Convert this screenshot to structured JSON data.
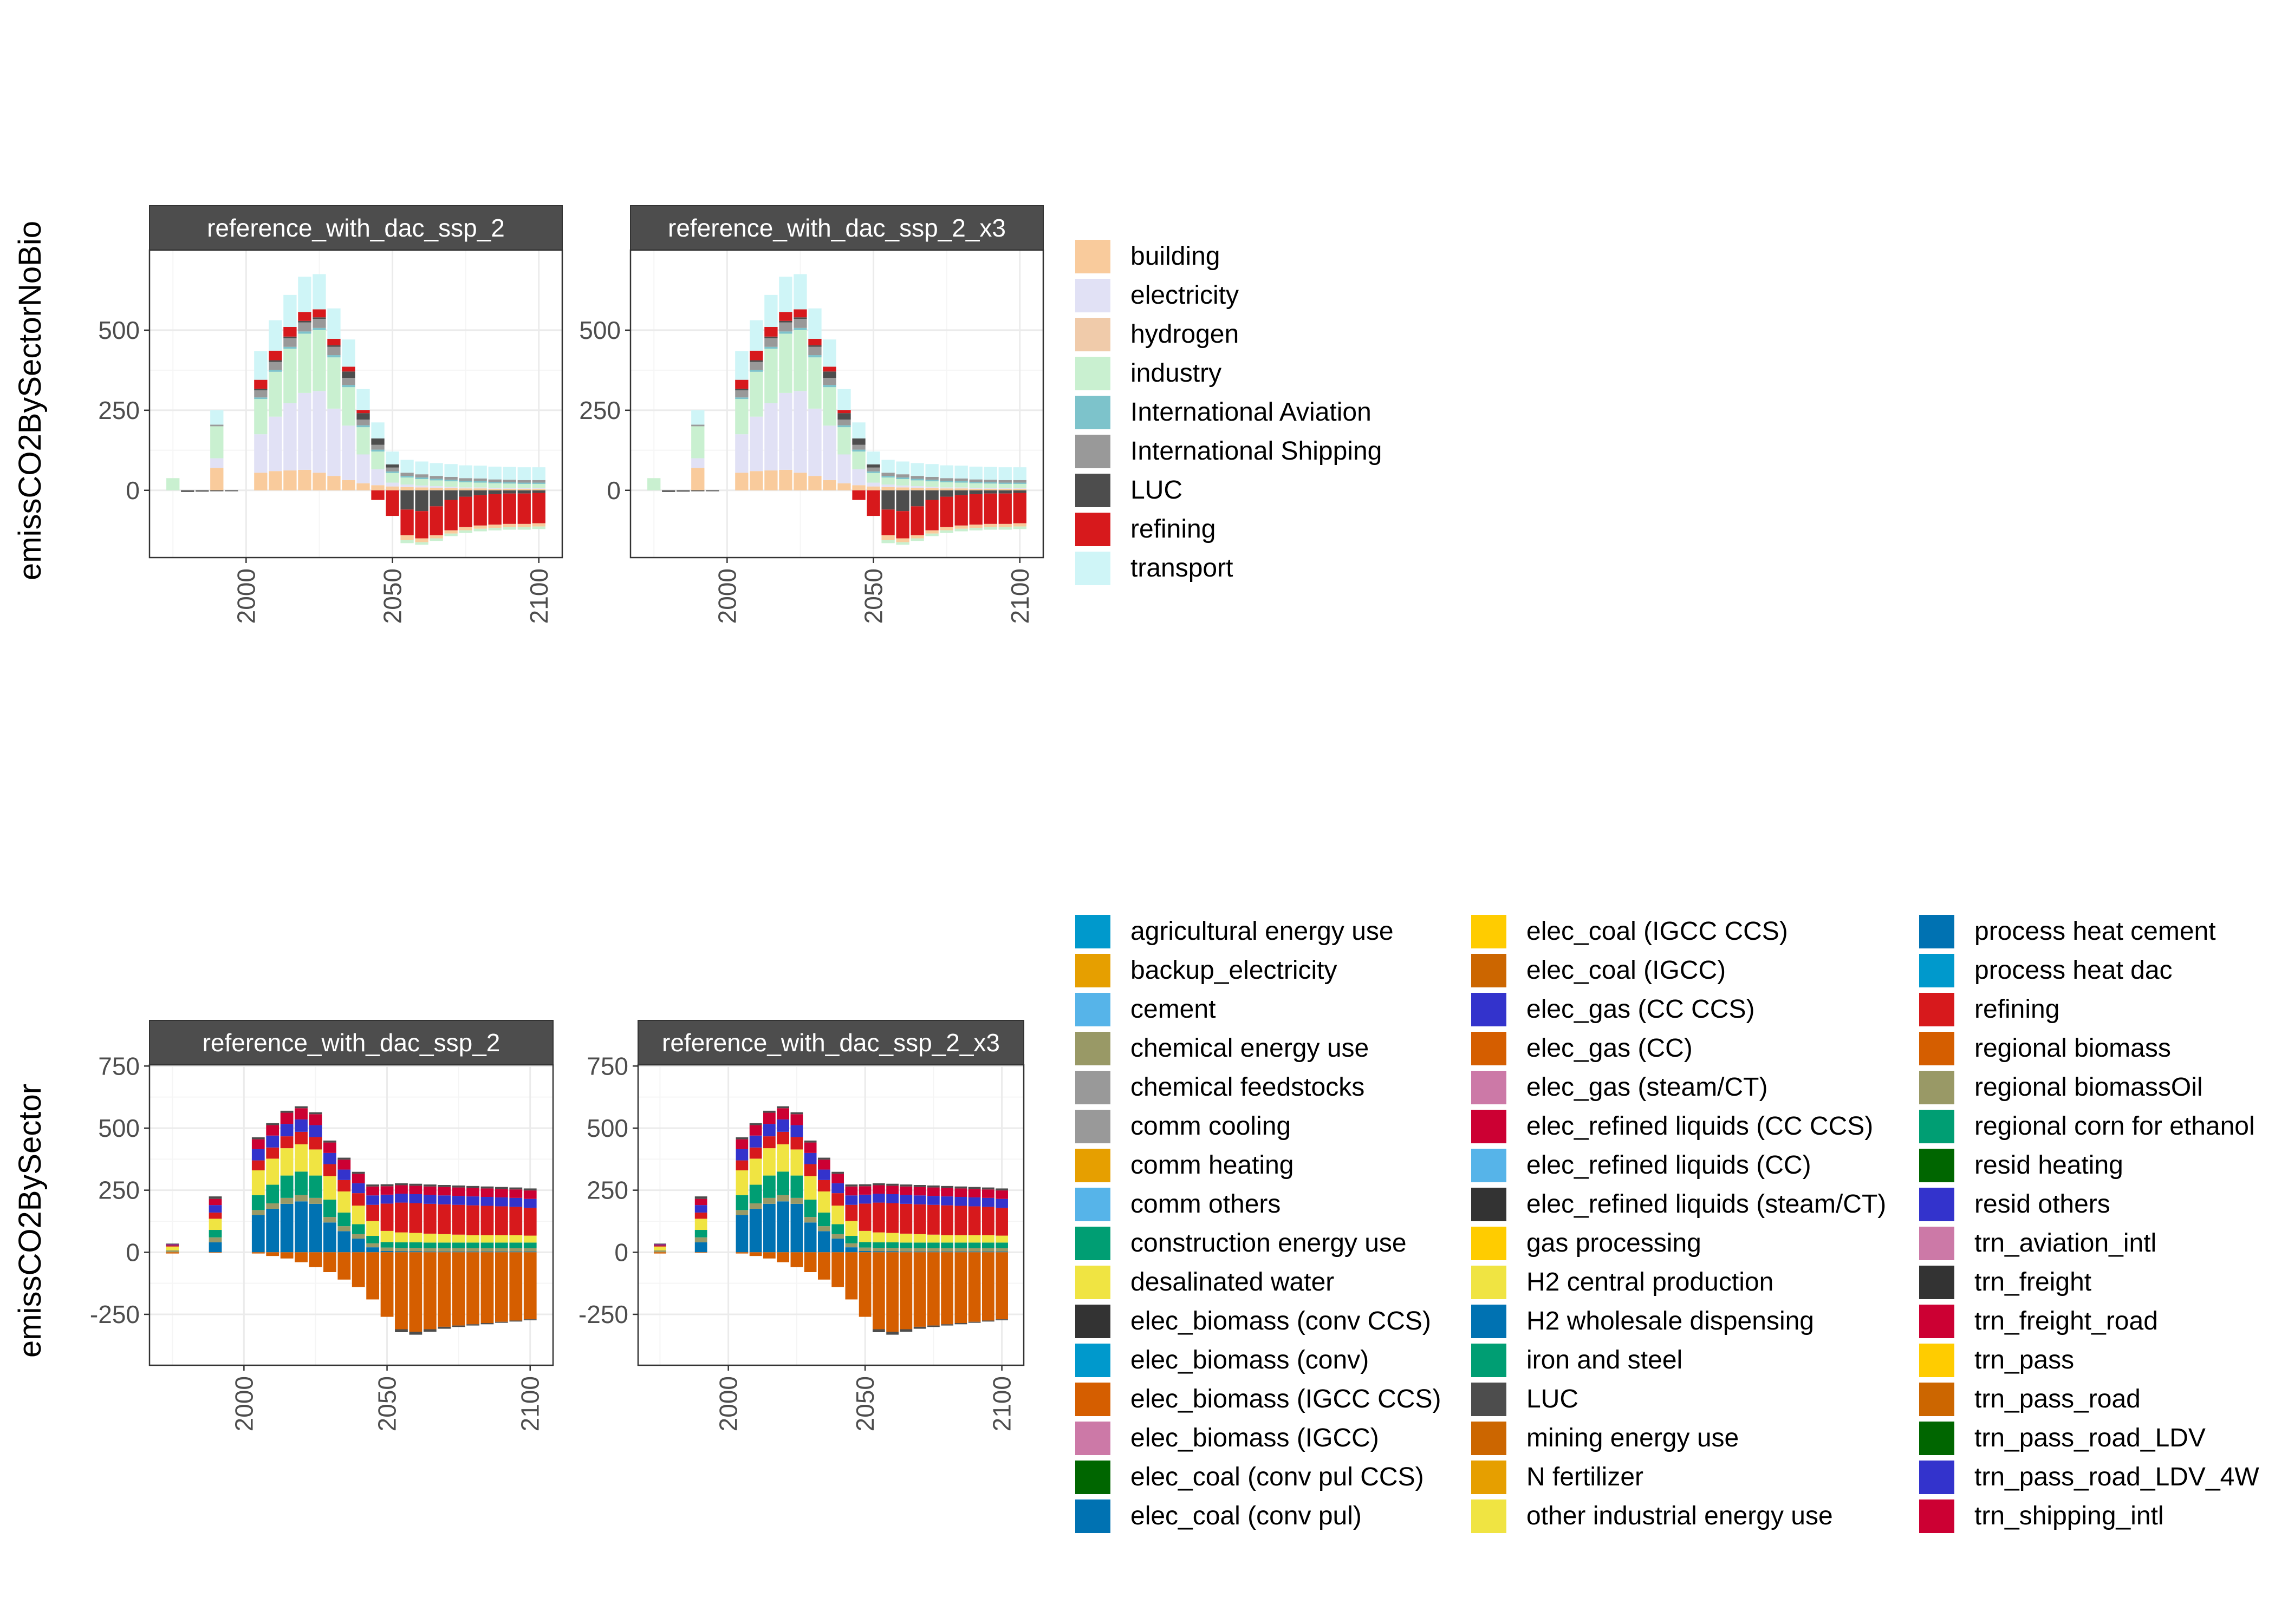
{
  "colors": {
    "strip_bg": "#4d4d4d",
    "strip_text": "#ffffff",
    "grid_major": "#ebebeb",
    "grid_minor": "#f5f5f5",
    "axis_text": "#4d4d4d",
    "panel_border": "#333333"
  },
  "chart_data": [
    {
      "type": "bar",
      "stacked": true,
      "row_label": "emissCO2BySectorNoBio",
      "facets": [
        "reference_with_dac_ssp_2",
        "reference_with_dac_ssp_2_x3"
      ],
      "x": [
        1975,
        1990,
        2005,
        2010,
        2015,
        2020,
        2025,
        2030,
        2035,
        2040,
        2045,
        2050,
        2055,
        2060,
        2065,
        2070,
        2075,
        2080,
        2085,
        2090,
        2095,
        2100
      ],
      "x_ticks": [
        2000,
        2050,
        2100
      ],
      "y_ticks": [
        0,
        250,
        500
      ],
      "ylim": [
        -210,
        750
      ],
      "xlim": [
        1967,
        2108
      ],
      "extra_bars": [
        {
          "x": 1975,
          "series": "industry",
          "value": 38
        },
        {
          "x": 1980,
          "series": "LUC",
          "value": -5
        },
        {
          "x": 1985,
          "series": "LUC",
          "value": -4
        },
        {
          "x": 1990,
          "series": "LUC",
          "value": -3
        },
        {
          "x": 1995,
          "series": "LUC",
          "value": -3
        }
      ],
      "series": [
        {
          "name": "building",
          "color": "#f9cb9c",
          "values": [
            0,
            70,
            55,
            60,
            62,
            64,
            55,
            45,
            32,
            22,
            16,
            12,
            10,
            9,
            8,
            7,
            6,
            6,
            5,
            5,
            5,
            5
          ]
        },
        {
          "name": "electricity",
          "color": "#e1e1f5",
          "values": [
            0,
            30,
            120,
            170,
            210,
            240,
            255,
            210,
            170,
            90,
            50,
            12,
            8,
            6,
            5,
            4,
            3,
            3,
            3,
            3,
            3,
            3
          ]
        },
        {
          "name": "hydrogen",
          "color": "#f0cbaa",
          "values": [
            0,
            0,
            0,
            0,
            0,
            0,
            0,
            0,
            0,
            0,
            0,
            0,
            0,
            0,
            0,
            0,
            0,
            0,
            0,
            0,
            0,
            0
          ]
        },
        {
          "name": "industry",
          "color": "#c9f0d0",
          "values": [
            0,
            100,
            110,
            140,
            170,
            185,
            190,
            160,
            120,
            85,
            55,
            30,
            22,
            20,
            18,
            17,
            16,
            15,
            14,
            13,
            12,
            12
          ]
        },
        {
          "name": "International Aviation",
          "color": "#7dc3cb",
          "values": [
            0,
            0,
            5,
            6,
            6,
            7,
            7,
            7,
            7,
            6,
            6,
            5,
            5,
            5,
            5,
            5,
            5,
            5,
            4,
            4,
            4,
            4
          ]
        },
        {
          "name": "International Shipping",
          "color": "#999999",
          "values": [
            0,
            5,
            22,
            25,
            27,
            28,
            28,
            26,
            22,
            18,
            15,
            12,
            10,
            10,
            9,
            9,
            8,
            8,
            8,
            8,
            8,
            8
          ]
        },
        {
          "name": "LUC",
          "color": "#4d4d4d",
          "values": [
            0,
            0,
            5,
            5,
            5,
            5,
            5,
            5,
            20,
            20,
            20,
            10,
            -60,
            -65,
            -50,
            -30,
            -20,
            -15,
            -12,
            -10,
            -10,
            -8
          ]
        },
        {
          "name": "refining",
          "color": "#d7191c",
          "values": [
            0,
            0,
            28,
            30,
            30,
            28,
            25,
            20,
            15,
            10,
            -30,
            -80,
            -80,
            -85,
            -90,
            -95,
            -95,
            -95,
            -95,
            -95,
            -95,
            -95
          ]
        },
        {
          "name": "transport",
          "color": "#cff5f7",
          "values": [
            0,
            45,
            90,
            95,
            100,
            110,
            110,
            95,
            85,
            65,
            50,
            40,
            40,
            40,
            40,
            40,
            40,
            40,
            40,
            40,
            40,
            40
          ]
        }
      ],
      "neg_extra": [
        {
          "series": "building",
          "values": [
            0,
            0,
            0,
            0,
            0,
            0,
            0,
            0,
            0,
            0,
            0,
            0,
            -15,
            -12,
            -10,
            -10,
            -10,
            -10,
            -10,
            -10,
            -10,
            -10
          ]
        },
        {
          "series": "industry",
          "values": [
            0,
            0,
            0,
            0,
            0,
            0,
            0,
            0,
            0,
            0,
            0,
            0,
            -10,
            -8,
            -8,
            -8,
            -8,
            -8,
            -8,
            -8,
            -8,
            -8
          ]
        }
      ],
      "legend": [
        "building",
        "electricity",
        "hydrogen",
        "industry",
        "International Aviation",
        "International Shipping",
        "LUC",
        "refining",
        "transport"
      ]
    },
    {
      "type": "bar",
      "stacked": true,
      "row_label": "emissCO2BySector",
      "facets": [
        "reference_with_dac_ssp_2",
        "reference_with_dac_ssp_2_x3"
      ],
      "x": [
        1975,
        1990,
        2005,
        2010,
        2015,
        2020,
        2025,
        2030,
        2035,
        2040,
        2045,
        2050,
        2055,
        2060,
        2065,
        2070,
        2075,
        2080,
        2085,
        2090,
        2095,
        2100
      ],
      "x_ticks": [
        2000,
        2050,
        2100
      ],
      "y_ticks": [
        -250,
        0,
        250,
        500,
        750
      ],
      "ylim": [
        -455,
        755
      ],
      "xlim": [
        1967,
        2108
      ],
      "positive_layers": [
        {
          "name": "elec_coal (conv pul)",
          "color": "#0072b2",
          "values": [
            0,
            40,
            150,
            175,
            195,
            205,
            195,
            120,
            85,
            55,
            20,
            5,
            4,
            4,
            3,
            3,
            3,
            3,
            3,
            3,
            3,
            3
          ]
        },
        {
          "name": "chemical energy use",
          "color": "#999966",
          "values": [
            8,
            20,
            20,
            22,
            24,
            25,
            24,
            22,
            20,
            18,
            16,
            14,
            14,
            14,
            14,
            14,
            14,
            14,
            14,
            14,
            14,
            14
          ]
        },
        {
          "name": "iron and steel",
          "color": "#009e73",
          "values": [
            0,
            30,
            60,
            75,
            90,
            95,
            90,
            70,
            55,
            40,
            30,
            22,
            22,
            22,
            22,
            22,
            22,
            22,
            22,
            22,
            22,
            22
          ]
        },
        {
          "name": "desalinated water",
          "color": "#f0e442",
          "values": [
            15,
            45,
            100,
            105,
            110,
            110,
            105,
            95,
            85,
            75,
            60,
            45,
            40,
            38,
            36,
            34,
            32,
            30,
            30,
            30,
            30,
            28
          ]
        },
        {
          "name": "refining",
          "color": "#d7191c",
          "values": [
            5,
            25,
            40,
            45,
            48,
            50,
            50,
            48,
            46,
            50,
            65,
            110,
            120,
            120,
            120,
            120,
            120,
            120,
            118,
            116,
            114,
            112
          ]
        },
        {
          "name": "trn_pass_road_LDV_4W",
          "color": "#3333cc",
          "values": [
            3,
            30,
            45,
            48,
            50,
            50,
            48,
            45,
            42,
            40,
            38,
            36,
            36,
            36,
            36,
            36,
            36,
            36,
            36,
            36,
            36,
            36
          ]
        },
        {
          "name": "trn_freight_road",
          "color": "#cc0033",
          "values": [
            2,
            25,
            40,
            42,
            45,
            45,
            44,
            42,
            40,
            38,
            36,
            34,
            34,
            34,
            34,
            34,
            34,
            34,
            34,
            34,
            34,
            34
          ]
        },
        {
          "name": "LUC",
          "color": "#4d4d4d",
          "values": [
            2,
            10,
            8,
            8,
            8,
            8,
            8,
            8,
            8,
            8,
            8,
            8,
            8,
            8,
            8,
            8,
            8,
            8,
            8,
            8,
            8,
            8
          ]
        }
      ],
      "negative_layers": [
        {
          "name": "regional biomass",
          "color": "#d55e00",
          "values": [
            -5,
            -2,
            -5,
            -15,
            -25,
            -40,
            -60,
            -80,
            -110,
            -140,
            -190,
            -260,
            -310,
            -320,
            -310,
            -300,
            -295,
            -290,
            -285,
            -280,
            -275,
            -270
          ]
        },
        {
          "name": "LUC",
          "color": "#4d4d4d",
          "values": [
            0,
            0,
            0,
            0,
            0,
            0,
            0,
            0,
            0,
            0,
            0,
            0,
            -12,
            -12,
            -10,
            -8,
            -6,
            -5,
            -5,
            -4,
            -4,
            -4
          ]
        }
      ],
      "legend": [
        {
          "name": "agricultural energy use",
          "color": "#0099cc"
        },
        {
          "name": "backup_electricity",
          "color": "#e69f00"
        },
        {
          "name": "cement",
          "color": "#56b4e9"
        },
        {
          "name": "chemical energy use",
          "color": "#999966"
        },
        {
          "name": "chemical feedstocks",
          "color": "#999999"
        },
        {
          "name": "comm cooling",
          "color": "#999999"
        },
        {
          "name": "comm heating",
          "color": "#e69f00"
        },
        {
          "name": "comm others",
          "color": "#56b4e9"
        },
        {
          "name": "construction energy use",
          "color": "#009e73"
        },
        {
          "name": "desalinated water",
          "color": "#f0e442"
        },
        {
          "name": "elec_biomass (conv CCS)",
          "color": "#333333"
        },
        {
          "name": "elec_biomass (conv)",
          "color": "#0099cc"
        },
        {
          "name": "elec_biomass (IGCC CCS)",
          "color": "#d55e00"
        },
        {
          "name": "elec_biomass (IGCC)",
          "color": "#cc79a7"
        },
        {
          "name": "elec_coal (conv pul CCS)",
          "color": "#006600"
        },
        {
          "name": "elec_coal (conv pul)",
          "color": "#0072b2"
        },
        {
          "name": "elec_coal (IGCC CCS)",
          "color": "#ffcc00"
        },
        {
          "name": "elec_coal (IGCC)",
          "color": "#cc6600"
        },
        {
          "name": "elec_gas (CC CCS)",
          "color": "#3333cc"
        },
        {
          "name": "elec_gas (CC)",
          "color": "#d55e00"
        },
        {
          "name": "elec_gas (steam/CT)",
          "color": "#cc79a7"
        },
        {
          "name": "elec_refined liquids (CC CCS)",
          "color": "#cc0033"
        },
        {
          "name": "elec_refined liquids (CC)",
          "color": "#56b4e9"
        },
        {
          "name": "elec_refined liquids (steam/CT)",
          "color": "#333333"
        },
        {
          "name": "gas processing",
          "color": "#ffcc00"
        },
        {
          "name": "H2 central production",
          "color": "#f0e442"
        },
        {
          "name": "H2 wholesale dispensing",
          "color": "#0072b2"
        },
        {
          "name": "iron and steel",
          "color": "#009e73"
        },
        {
          "name": "LUC",
          "color": "#4d4d4d"
        },
        {
          "name": "mining energy use",
          "color": "#cc6600"
        },
        {
          "name": "N fertilizer",
          "color": "#e69f00"
        },
        {
          "name": "other industrial energy use",
          "color": "#f0e442"
        },
        {
          "name": "process heat cement",
          "color": "#0072b2"
        },
        {
          "name": "process heat dac",
          "color": "#0099cc"
        },
        {
          "name": "refining",
          "color": "#d7191c"
        },
        {
          "name": "regional biomass",
          "color": "#d55e00"
        },
        {
          "name": "regional biomassOil",
          "color": "#999966"
        },
        {
          "name": "regional corn for ethanol",
          "color": "#009e73"
        },
        {
          "name": "resid heating",
          "color": "#006600"
        },
        {
          "name": "resid others",
          "color": "#3333cc"
        },
        {
          "name": "trn_aviation_intl",
          "color": "#cc79a7"
        },
        {
          "name": "trn_freight",
          "color": "#333333"
        },
        {
          "name": "trn_freight_road",
          "color": "#cc0033"
        },
        {
          "name": "trn_pass",
          "color": "#ffcc00"
        },
        {
          "name": "trn_pass_road",
          "color": "#cc6600"
        },
        {
          "name": "trn_pass_road_LDV",
          "color": "#006600"
        },
        {
          "name": "trn_pass_road_LDV_4W",
          "color": "#3333cc"
        },
        {
          "name": "trn_shipping_intl",
          "color": "#cc0033"
        }
      ]
    }
  ]
}
